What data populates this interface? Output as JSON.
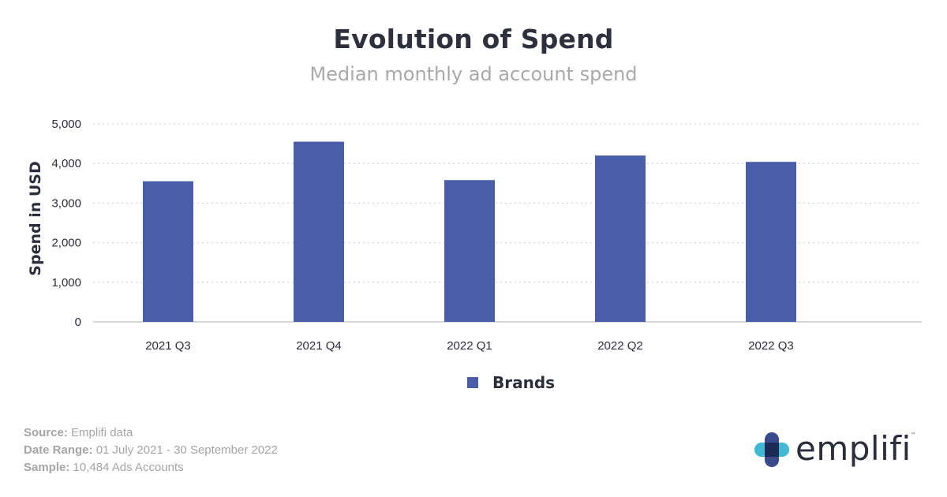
{
  "title": "Evolution of Spend",
  "subtitle": "Median monthly ad account spend",
  "chart_data": {
    "type": "bar",
    "categories": [
      "2021 Q3",
      "2021 Q4",
      "2022 Q1",
      "2022 Q2",
      "2022 Q3"
    ],
    "series": [
      {
        "name": "Brands",
        "values": [
          3550,
          4550,
          3580,
          4200,
          4040
        ],
        "color": "#4a5da8"
      }
    ],
    "ylabel": "Spend in USD",
    "xlabel": "",
    "ylim": [
      0,
      5000
    ],
    "yticks": [
      0,
      1000,
      2000,
      3000,
      4000,
      5000
    ],
    "ytick_labels": [
      "0",
      "1,000",
      "2,000",
      "3,000",
      "4,000",
      "5,000"
    ],
    "grid": true,
    "legend_position": "bottom-center"
  },
  "footer": {
    "source_key": "Source:",
    "source_value": " Emplifi data",
    "date_key": "Date Range:",
    "date_value": " 01 July 2021 - 30 September 2022",
    "sample_key": "Sample:",
    "sample_value": " 10,484 Ads Accounts"
  },
  "logo": {
    "wordmark": "emplifi",
    "icon": "emplifi-logo-icon"
  },
  "colors": {
    "bar": "#4a5da8",
    "gridline": "#cccccc",
    "title": "#2e303c",
    "subtitle": "#a9a9a9",
    "footer": "#a5a5a5"
  }
}
